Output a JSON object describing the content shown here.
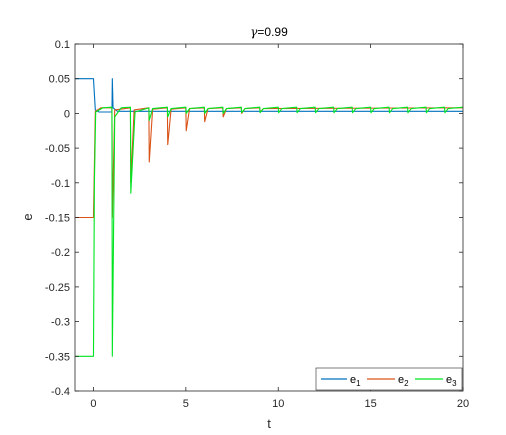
{
  "chart_data": {
    "type": "line",
    "title_symbol": "γ",
    "title_value": "=0.99",
    "xlabel": "t",
    "ylabel": "e",
    "xlim": [
      -1,
      20
    ],
    "ylim": [
      -0.4,
      0.1
    ],
    "xticks": [
      0,
      5,
      10,
      15,
      20
    ],
    "yticks": [
      0.1,
      0.05,
      0,
      -0.05,
      -0.1,
      -0.15,
      -0.2,
      -0.25,
      -0.3,
      -0.35,
      -0.4
    ],
    "ytick_labels": [
      "0.1",
      "0.05",
      "0",
      "-0.05",
      "-0.1",
      "-0.15",
      "-0.2",
      "-0.25",
      "-0.3",
      "-0.35",
      "-0.4"
    ],
    "legend_placement": "bottom-right",
    "series": [
      {
        "name_base": "e",
        "name_sub": "1",
        "color": "#0072BD",
        "points": [
          [
            -1,
            0.05
          ],
          [
            0,
            0.05
          ],
          [
            0.1,
            0.005
          ],
          [
            0.3,
            0.002
          ],
          [
            1,
            0.002
          ],
          [
            1.02,
            0.05
          ],
          [
            1.06,
            0.008
          ],
          [
            1.3,
            0.003
          ],
          [
            20,
            0.003
          ]
        ]
      },
      {
        "name_base": "e",
        "name_sub": "2",
        "color": "#D95319",
        "points": [
          [
            -1,
            -0.15
          ],
          [
            0,
            -0.15
          ],
          [
            0.1,
            0.003
          ],
          [
            0.4,
            0.008
          ],
          [
            1,
            0.008
          ],
          [
            1.02,
            -0.15
          ],
          [
            1.15,
            0.005
          ],
          [
            2,
            0.008
          ],
          [
            2.02,
            -0.1
          ],
          [
            2.2,
            0.005
          ],
          [
            3,
            0.008
          ],
          [
            3.02,
            -0.07
          ],
          [
            3.2,
            0.006
          ],
          [
            4,
            0.008
          ],
          [
            4.02,
            -0.045
          ],
          [
            4.2,
            0.006
          ],
          [
            5,
            0.008
          ],
          [
            5.02,
            -0.025
          ],
          [
            5.2,
            0.007
          ],
          [
            6,
            0.008
          ],
          [
            6.02,
            -0.012
          ],
          [
            6.2,
            0.007
          ],
          [
            7,
            0.008
          ],
          [
            7.02,
            -0.005
          ],
          [
            7.2,
            0.007
          ],
          [
            8,
            0.008
          ],
          [
            8.02,
            0
          ],
          [
            8.2,
            0.007
          ],
          [
            9,
            0.008
          ],
          [
            9.02,
            0.002
          ],
          [
            9.2,
            0.007
          ],
          [
            20,
            0.008
          ]
        ]
      },
      {
        "name_base": "e",
        "name_sub": "3",
        "color": "#00E51F",
        "points": [
          [
            -1,
            -0.35
          ],
          [
            0,
            -0.35
          ],
          [
            0.05,
            -0.1
          ],
          [
            0.12,
            0.002
          ],
          [
            0.5,
            0.008
          ],
          [
            1,
            0.009
          ],
          [
            1.02,
            -0.35
          ],
          [
            1.15,
            -0.005
          ],
          [
            1.5,
            0.008
          ],
          [
            2,
            0.009
          ],
          [
            2.02,
            -0.115
          ],
          [
            2.25,
            0.002
          ],
          [
            3,
            0.008
          ],
          [
            3.02,
            -0.01
          ],
          [
            3.2,
            0.007
          ],
          [
            4,
            0.009
          ],
          [
            4.02,
            -0.005
          ],
          [
            4.2,
            0.007
          ],
          [
            5,
            0.009
          ],
          [
            5.02,
            0
          ],
          [
            5.2,
            0.007
          ],
          [
            6,
            0.009
          ],
          [
            6.02,
            0
          ],
          [
            6.2,
            0.007
          ],
          [
            7,
            0.009
          ],
          [
            7.02,
            0
          ],
          [
            7.2,
            0.007
          ],
          [
            8,
            0.009
          ],
          [
            8.02,
            0.001
          ],
          [
            8.2,
            0.007
          ],
          [
            9,
            0.009
          ],
          [
            9.02,
            0.001
          ],
          [
            9.2,
            0.007
          ],
          [
            10,
            0.009
          ],
          [
            10.02,
            0.001
          ],
          [
            10.2,
            0.007
          ],
          [
            11,
            0.009
          ],
          [
            11.02,
            0.001
          ],
          [
            11.2,
            0.007
          ],
          [
            12,
            0.009
          ],
          [
            12.02,
            0.001
          ],
          [
            12.2,
            0.007
          ],
          [
            13,
            0.009
          ],
          [
            13.02,
            0.001
          ],
          [
            13.2,
            0.007
          ],
          [
            14,
            0.009
          ],
          [
            14.02,
            0.001
          ],
          [
            14.2,
            0.007
          ],
          [
            15,
            0.009
          ],
          [
            15.02,
            0.001
          ],
          [
            15.2,
            0.007
          ],
          [
            16,
            0.009
          ],
          [
            16.02,
            0.001
          ],
          [
            16.2,
            0.007
          ],
          [
            17,
            0.009
          ],
          [
            17.02,
            0.001
          ],
          [
            17.2,
            0.007
          ],
          [
            18,
            0.009
          ],
          [
            18.02,
            0.001
          ],
          [
            18.2,
            0.007
          ],
          [
            19,
            0.009
          ],
          [
            19.02,
            0.001
          ],
          [
            19.2,
            0.007
          ],
          [
            20,
            0.009
          ]
        ]
      }
    ]
  }
}
